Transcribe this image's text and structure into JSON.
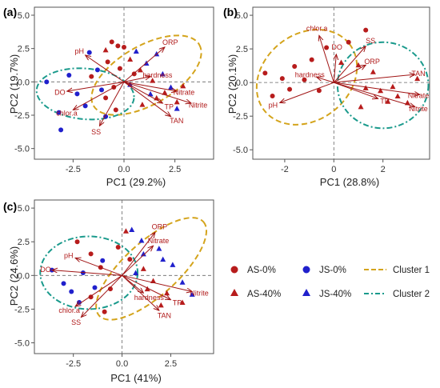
{
  "colors": {
    "arrow": "#a01414",
    "as_color": "#b71c1c",
    "js_color": "#2020cc",
    "cluster1": "#d4a41c",
    "cluster2": "#1a9a8c"
  },
  "legend": {
    "as0": "AS-0%",
    "as40": "AS-40%",
    "js0": "JS-0%",
    "js40": "JS-40%",
    "cluster1": "Cluster 1",
    "cluster2": "Cluster 2"
  },
  "chart_data": [
    {
      "type": "scatter",
      "panel": "(a)",
      "xlabel": "PC1 (29.2%)",
      "ylabel": "PC2 (19.7%)",
      "xlim": [
        -4.4,
        4.4
      ],
      "ylim": [
        -5.8,
        5.6
      ],
      "xticks": [
        "-2.5",
        "0.0",
        "2.5"
      ],
      "xtick_values": [
        -2.5,
        0,
        2.5
      ],
      "yticks": [
        "-5.0",
        "-2.5",
        "0.0",
        "2.5",
        "5.0"
      ],
      "ytick_values": [
        -5,
        -2.5,
        0,
        2.5,
        5
      ],
      "loadings": [
        {
          "label": "ORP",
          "x": 2.0,
          "y": 2.6
        },
        {
          "label": "pH",
          "x": -1.9,
          "y": 2.0
        },
        {
          "label": "hardness",
          "x": 1.3,
          "y": 0.4
        },
        {
          "label": "Nitrate",
          "x": 2.6,
          "y": -0.7
        },
        {
          "label": "Nitrite",
          "x": 3.3,
          "y": -1.6
        },
        {
          "label": "TP",
          "x": 1.9,
          "y": -1.6
        },
        {
          "label": "TAN",
          "x": 2.3,
          "y": -2.6
        },
        {
          "label": "DO",
          "x": -2.8,
          "y": -0.7
        },
        {
          "label": "chlor.a",
          "x": -2.5,
          "y": -2.1
        },
        {
          "label": "SS",
          "x": -1.2,
          "y": -3.3
        }
      ],
      "points": [
        {
          "g": "AS-0%",
          "x": -0.6,
          "y": 3.0
        },
        {
          "g": "AS-0%",
          "x": -0.3,
          "y": 2.7
        },
        {
          "g": "AS-0%",
          "x": 0.0,
          "y": 2.6
        },
        {
          "g": "AS-0%",
          "x": -0.8,
          "y": 1.5
        },
        {
          "g": "AS-0%",
          "x": -0.2,
          "y": 1.0
        },
        {
          "g": "AS-0%",
          "x": -1.6,
          "y": 0.4
        },
        {
          "g": "AS-0%",
          "x": -0.5,
          "y": -0.4
        },
        {
          "g": "AS-0%",
          "x": -0.9,
          "y": -1.2
        },
        {
          "g": "AS-0%",
          "x": -0.4,
          "y": -2.1
        },
        {
          "g": "AS-0%",
          "x": 0.5,
          "y": 0.6
        },
        {
          "g": "AS-40%",
          "x": -0.9,
          "y": 2.4
        },
        {
          "g": "AS-40%",
          "x": 0.3,
          "y": 1.7
        },
        {
          "g": "AS-40%",
          "x": 0.8,
          "y": 0.9
        },
        {
          "g": "AS-40%",
          "x": 1.4,
          "y": 0.1
        },
        {
          "g": "AS-40%",
          "x": 2.0,
          "y": -0.8
        },
        {
          "g": "AS-40%",
          "x": 2.6,
          "y": -1.5
        },
        {
          "g": "AS-40%",
          "x": 1.6,
          "y": -1.2
        },
        {
          "g": "AS-40%",
          "x": 2.9,
          "y": -0.3
        },
        {
          "g": "AS-40%",
          "x": 0.9,
          "y": -1.7
        },
        {
          "g": "JS-0%",
          "x": -3.8,
          "y": 0.0
        },
        {
          "g": "JS-0%",
          "x": -3.2,
          "y": -2.3
        },
        {
          "g": "JS-0%",
          "x": -3.1,
          "y": -3.6
        },
        {
          "g": "JS-0%",
          "x": -2.7,
          "y": 0.5
        },
        {
          "g": "JS-0%",
          "x": -2.3,
          "y": -0.9
        },
        {
          "g": "JS-0%",
          "x": -1.9,
          "y": -1.8
        },
        {
          "g": "JS-0%",
          "x": -1.3,
          "y": 0.9
        },
        {
          "g": "JS-0%",
          "x": -1.1,
          "y": -0.6
        },
        {
          "g": "JS-0%",
          "x": -1.7,
          "y": 2.2
        },
        {
          "g": "JS-0%",
          "x": -0.9,
          "y": -2.6
        },
        {
          "g": "JS-40%",
          "x": 0.6,
          "y": 2.3
        },
        {
          "g": "JS-40%",
          "x": 1.1,
          "y": 1.4
        },
        {
          "g": "JS-40%",
          "x": 1.9,
          "y": 0.6
        },
        {
          "g": "JS-40%",
          "x": 2.3,
          "y": -0.4
        },
        {
          "g": "JS-40%",
          "x": 1.3,
          "y": -0.9
        },
        {
          "g": "JS-40%",
          "x": 1.6,
          "y": 2.1
        },
        {
          "g": "JS-40%",
          "x": 0.3,
          "y": -0.2
        },
        {
          "g": "JS-40%",
          "x": 2.6,
          "y": -2.0
        }
      ],
      "ellipses": [
        {
          "cluster": "Cluster 1",
          "cx": 1.1,
          "cy": 0.5,
          "rx": 3.0,
          "ry": 2.2,
          "deg": -30
        },
        {
          "cluster": "Cluster 2",
          "cx": -1.9,
          "cy": -0.9,
          "rx": 2.4,
          "ry": 1.9,
          "deg": 5
        }
      ]
    },
    {
      "type": "scatter",
      "panel": "(b)",
      "xlabel": "PC1 (28.8%)",
      "ylabel": "PC2 (20.1%)",
      "xlim": [
        -3.3,
        3.9
      ],
      "ylim": [
        -5.7,
        5.6
      ],
      "xticks": [
        "-2",
        "0",
        "2"
      ],
      "xtick_values": [
        -2,
        0,
        2
      ],
      "yticks": [
        "-5.0",
        "-2.5",
        "0.0",
        "2.5",
        "5.0"
      ],
      "ytick_values": [
        -5,
        -2.5,
        0,
        2.5,
        5
      ],
      "loadings": [
        {
          "label": "chlor.a",
          "x": -0.6,
          "y": 3.5
        },
        {
          "label": "SS",
          "x": 1.3,
          "y": 2.7
        },
        {
          "label": "DO",
          "x": 0.1,
          "y": 2.1
        },
        {
          "label": "ORP",
          "x": 1.3,
          "y": 1.3
        },
        {
          "label": "hardness",
          "x": -0.7,
          "y": 0.4
        },
        {
          "label": "TAN",
          "x": 3.3,
          "y": 0.6
        },
        {
          "label": "TP",
          "x": 1.8,
          "y": -1.2
        },
        {
          "label": "Nitrate",
          "x": 3.5,
          "y": -0.9
        },
        {
          "label": "Nitrite",
          "x": 3.3,
          "y": -1.8
        },
        {
          "label": "pH",
          "x": -2.2,
          "y": -1.5
        }
      ],
      "points": [
        {
          "g": "AS-0%",
          "x": -2.5,
          "y": -1.0
        },
        {
          "g": "AS-0%",
          "x": -2.1,
          "y": 0.3
        },
        {
          "g": "AS-0%",
          "x": -1.8,
          "y": -0.5
        },
        {
          "g": "AS-0%",
          "x": -1.6,
          "y": 1.2
        },
        {
          "g": "AS-0%",
          "x": -1.2,
          "y": 0.2
        },
        {
          "g": "AS-0%",
          "x": -0.9,
          "y": 1.7
        },
        {
          "g": "AS-0%",
          "x": -0.6,
          "y": -0.6
        },
        {
          "g": "AS-0%",
          "x": -0.3,
          "y": 2.6
        },
        {
          "g": "AS-0%",
          "x": 0.6,
          "y": 3.0
        },
        {
          "g": "AS-0%",
          "x": 1.3,
          "y": 3.9
        },
        {
          "g": "AS-0%",
          "x": -2.8,
          "y": 0.7
        },
        {
          "g": "AS-40%",
          "x": 0.3,
          "y": 1.5
        },
        {
          "g": "AS-40%",
          "x": 1.0,
          "y": 1.3
        },
        {
          "g": "AS-40%",
          "x": 1.6,
          "y": 0.8
        },
        {
          "g": "AS-40%",
          "x": 1.3,
          "y": -0.4
        },
        {
          "g": "AS-40%",
          "x": 1.9,
          "y": -0.6
        },
        {
          "g": "AS-40%",
          "x": 2.4,
          "y": -0.3
        },
        {
          "g": "AS-40%",
          "x": 2.6,
          "y": -1.0
        },
        {
          "g": "AS-40%",
          "x": 3.0,
          "y": -1.5
        },
        {
          "g": "AS-40%",
          "x": 2.2,
          "y": -1.4
        },
        {
          "g": "AS-40%",
          "x": 1.1,
          "y": -1.8
        },
        {
          "g": "AS-40%",
          "x": 3.4,
          "y": 0.3
        }
      ],
      "ellipses": [
        {
          "cluster": "Cluster 1",
          "cx": -1.1,
          "cy": 0.4,
          "rx": 2.2,
          "ry": 3.2,
          "deg": -38
        },
        {
          "cluster": "Cluster 2",
          "cx": 2.0,
          "cy": -0.2,
          "rx": 1.85,
          "ry": 3.2,
          "deg": 0
        }
      ]
    },
    {
      "type": "scatter",
      "panel": "(c)",
      "xlabel": "PC1 (41%)",
      "ylabel": "PC2 (24.6%)",
      "xlim": [
        -4.5,
        4.7
      ],
      "ylim": [
        -5.8,
        5.6
      ],
      "xticks": [
        "-2.5",
        "0.0",
        "2.5"
      ],
      "xtick_values": [
        -2.5,
        0,
        2.5
      ],
      "yticks": [
        "-5.0",
        "-2.5",
        "0.0",
        "2.5",
        "5.0"
      ],
      "ytick_values": [
        -5,
        -2.5,
        0,
        2.5,
        5
      ],
      "loadings": [
        {
          "label": "ORP",
          "x": 1.7,
          "y": 3.2
        },
        {
          "label": "Nitrate",
          "x": 1.6,
          "y": 2.2
        },
        {
          "label": "pH",
          "x": -2.4,
          "y": 1.3
        },
        {
          "label": "DO",
          "x": -3.6,
          "y": 0.4
        },
        {
          "label": "hardness",
          "x": 1.1,
          "y": -1.3
        },
        {
          "label": "Nitrite",
          "x": 3.6,
          "y": -1.2
        },
        {
          "label": "TP",
          "x": 2.5,
          "y": -1.8
        },
        {
          "label": "TAN",
          "x": 1.9,
          "y": -2.6
        },
        {
          "label": "chlor.a",
          "x": -2.4,
          "y": -2.3
        },
        {
          "label": "SS",
          "x": -2.1,
          "y": -3.1
        }
      ],
      "points": [
        {
          "g": "AS-0%",
          "x": -2.3,
          "y": 2.5
        },
        {
          "g": "AS-0%",
          "x": -1.6,
          "y": 1.6
        },
        {
          "g": "AS-0%",
          "x": -1.1,
          "y": 0.6
        },
        {
          "g": "AS-0%",
          "x": -0.6,
          "y": -1.0
        },
        {
          "g": "AS-0%",
          "x": -1.6,
          "y": -1.6
        },
        {
          "g": "AS-0%",
          "x": -0.2,
          "y": 2.1
        },
        {
          "g": "AS-0%",
          "x": 0.4,
          "y": 1.2
        },
        {
          "g": "AS-0%",
          "x": -0.9,
          "y": -2.7
        },
        {
          "g": "AS-40%",
          "x": 1.1,
          "y": 0.5
        },
        {
          "g": "AS-40%",
          "x": 1.6,
          "y": -0.4
        },
        {
          "g": "AS-40%",
          "x": 2.3,
          "y": -1.3
        },
        {
          "g": "AS-40%",
          "x": 3.1,
          "y": -2.0
        },
        {
          "g": "AS-40%",
          "x": 2.0,
          "y": -2.2
        },
        {
          "g": "AS-40%",
          "x": 1.3,
          "y": -1.0
        },
        {
          "g": "AS-40%",
          "x": 0.2,
          "y": 3.3
        },
        {
          "g": "JS-0%",
          "x": -3.6,
          "y": 0.4
        },
        {
          "g": "JS-0%",
          "x": -3.0,
          "y": -0.6
        },
        {
          "g": "JS-0%",
          "x": -2.6,
          "y": -1.2
        },
        {
          "g": "JS-0%",
          "x": -2.0,
          "y": 0.2
        },
        {
          "g": "JS-0%",
          "x": -1.4,
          "y": -0.9
        },
        {
          "g": "JS-0%",
          "x": -2.2,
          "y": -2.0
        },
        {
          "g": "JS-0%",
          "x": -1.0,
          "y": 1.1
        },
        {
          "g": "JS-40%",
          "x": 0.5,
          "y": 3.4
        },
        {
          "g": "JS-40%",
          "x": 1.0,
          "y": 2.6
        },
        {
          "g": "JS-40%",
          "x": 1.9,
          "y": 2.0
        },
        {
          "g": "JS-40%",
          "x": 1.1,
          "y": 1.6
        },
        {
          "g": "JS-40%",
          "x": 2.6,
          "y": 0.8
        },
        {
          "g": "JS-40%",
          "x": 3.1,
          "y": -0.5
        },
        {
          "g": "JS-40%",
          "x": 3.6,
          "y": -1.4
        },
        {
          "g": "JS-40%",
          "x": 0.7,
          "y": 0.2
        },
        {
          "g": "JS-40%",
          "x": 2.1,
          "y": 1.2
        }
      ],
      "ellipses": [
        {
          "cluster": "Cluster 1",
          "cx": 1.5,
          "cy": 0.5,
          "rx": 3.6,
          "ry": 2.0,
          "deg": -42
        },
        {
          "cluster": "Cluster 2",
          "cx": -1.7,
          "cy": 0.2,
          "rx": 2.5,
          "ry": 2.7,
          "deg": 0
        }
      ]
    }
  ]
}
